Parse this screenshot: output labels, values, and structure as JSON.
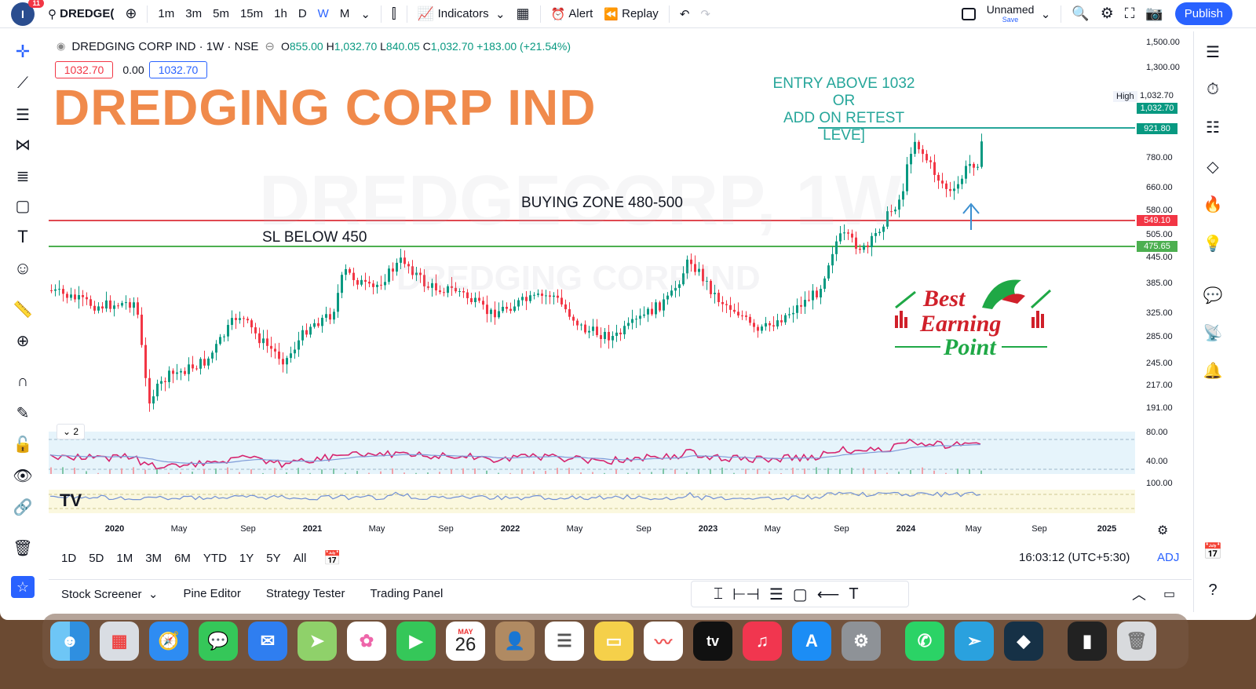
{
  "topbar": {
    "logo_text": "I",
    "notifications": "11",
    "symbol": "DREDGE(",
    "intervals": [
      "1m",
      "3m",
      "5m",
      "15m",
      "1h",
      "D",
      "W",
      "M"
    ],
    "active_interval": "W",
    "indicators": "Indicators",
    "alert": "Alert",
    "replay": "Replay",
    "layout_name": "Unnamed",
    "layout_sub": "Save",
    "publish": "Publish"
  },
  "legend": {
    "title": "DREDGING CORP IND · 1W · NSE",
    "open_label": "O",
    "open": "855.00",
    "high_label": "H",
    "high": "1,032.70",
    "low_label": "L",
    "low": "840.05",
    "close_label": "C",
    "close": "1,032.70",
    "change": "+183.00 (+21.54%)",
    "sell_price": "1032.70",
    "spread": "0.00",
    "buy_price": "1032.70"
  },
  "annotations": {
    "big_title": "DREDGING CORP IND",
    "watermark": "DREDGECORP, 1W",
    "watermark_sub": "DREDGING CORP IND",
    "entry_line1": "ENTRY ABOVE 1032",
    "entry_line2": "OR",
    "entry_line3": "ADD ON RETEST LEVE]",
    "buying_zone": "BUYING ZONE 480-500",
    "stop_loss": "SL BELOW 450",
    "brand_line1": "Best",
    "brand_line2": "Earning",
    "brand_line3": "Point",
    "indicator_count": "2"
  },
  "colors": {
    "up": "#089981",
    "down": "#f23645",
    "accent": "#2962ff",
    "title": "#f08a4b",
    "resistance": "#f23645",
    "support": "#4caf50",
    "entry": "#26a69a"
  },
  "price_scale": {
    "ticks": [
      "1,500.00",
      "1,300.00",
      "780.00",
      "660.00",
      "580.00",
      "505.00",
      "445.00",
      "385.00",
      "325.00",
      "285.00",
      "245.00",
      "217.00",
      "191.00"
    ],
    "osc_ticks": [
      "80.00",
      "40.00",
      "100.00"
    ],
    "high_label": "High",
    "high_value": "1,032.70",
    "last_price": "1,032.70",
    "entry_level": "921.80",
    "resistance_level": "549.10",
    "support_level": "475.65"
  },
  "time_axis": [
    "2020",
    "May",
    "Sep",
    "2021",
    "May",
    "Sep",
    "2022",
    "May",
    "Sep",
    "2023",
    "May",
    "Sep",
    "2024",
    "May",
    "Sep",
    "2025"
  ],
  "range_bar": {
    "ranges": [
      "1D",
      "5D",
      "1M",
      "3M",
      "6M",
      "YTD",
      "1Y",
      "5Y",
      "All"
    ],
    "clock": "16:03:12 (UTC+5:30)",
    "adj": "ADJ"
  },
  "bottom_panel": {
    "tabs": [
      "Stock Screener",
      "Pine Editor",
      "Strategy Tester",
      "Trading Panel"
    ]
  },
  "dock": {
    "calendar_month": "MAY",
    "calendar_day": "26",
    "tv_label": "tv",
    "apps": [
      "finder",
      "launchpad",
      "safari",
      "messages",
      "mail",
      "maps",
      "photos",
      "facetime",
      "calendar",
      "contacts",
      "reminders",
      "notes",
      "freeform",
      "apple-tv",
      "music",
      "app-store",
      "system-settings",
      "whatsapp",
      "telegram",
      "tradingview",
      "screen",
      "trash"
    ]
  }
}
